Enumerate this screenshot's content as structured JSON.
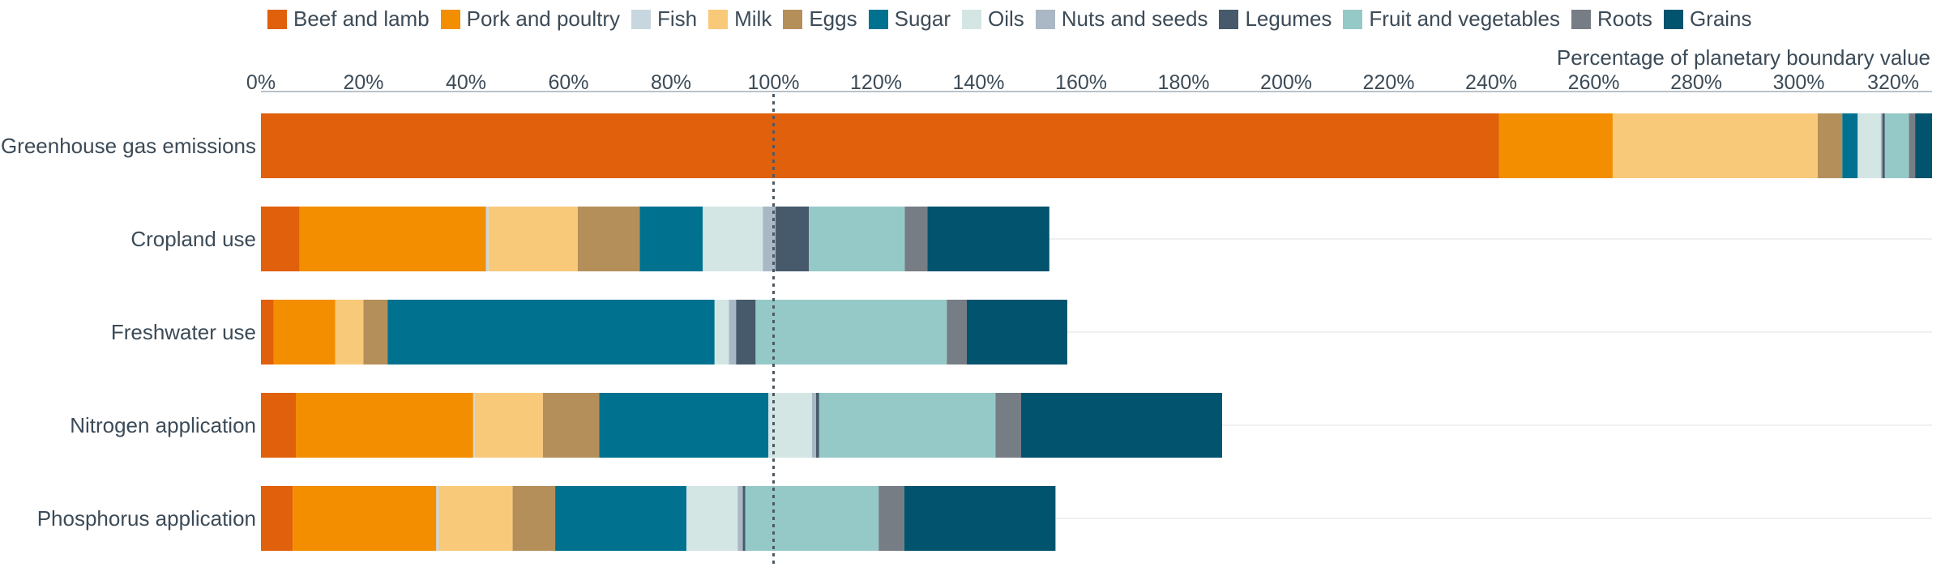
{
  "chart_data": {
    "type": "bar",
    "orientation": "horizontal",
    "stacked": true,
    "axis_title": "Percentage of planetary boundary value",
    "x_ticks": [
      "0%",
      "20%",
      "40%",
      "60%",
      "80%",
      "100%",
      "120%",
      "140%",
      "160%",
      "180%",
      "200%",
      "220%",
      "240%",
      "260%",
      "280%",
      "300%",
      "320%"
    ],
    "xlim": [
      0,
      326
    ],
    "reference_line": 100,
    "legend_position": "top",
    "categories": [
      "Greenhouse gas emissions",
      "Cropland use",
      "Freshwater use",
      "Nitrogen application",
      "Phosphorus application"
    ],
    "series": [
      {
        "name": "Beef and lamb",
        "color": "#e0600b",
        "values": [
          241.5,
          7.5,
          2.5,
          6.8,
          6.2
        ]
      },
      {
        "name": "Pork and poultry",
        "color": "#f28e00",
        "values": [
          22.2,
          36.4,
          12.0,
          34.6,
          28.0
        ]
      },
      {
        "name": "Fish",
        "color": "#c8d6e0",
        "values": [
          0.0,
          0.5,
          0.0,
          0.3,
          0.5
        ]
      },
      {
        "name": "Milk",
        "color": "#f9c97a",
        "values": [
          40.0,
          17.4,
          5.5,
          13.3,
          14.4
        ]
      },
      {
        "name": "Eggs",
        "color": "#b58f5a",
        "values": [
          4.8,
          12.1,
          4.7,
          11.0,
          8.3
        ]
      },
      {
        "name": "Sugar",
        "color": "#00728f",
        "values": [
          3.0,
          12.3,
          63.8,
          33.0,
          25.6
        ]
      },
      {
        "name": "Oils",
        "color": "#d3e6e4",
        "values": [
          4.5,
          11.7,
          2.8,
          8.5,
          10.0
        ]
      },
      {
        "name": "Nuts and seeds",
        "color": "#a9b8c4",
        "values": [
          0.3,
          2.5,
          1.4,
          0.8,
          1.0
        ]
      },
      {
        "name": "Legumes",
        "color": "#465a6b",
        "values": [
          0.5,
          6.5,
          3.8,
          0.6,
          0.5
        ]
      },
      {
        "name": "Fruit and vegetables",
        "color": "#95c9c8",
        "values": [
          4.7,
          18.7,
          37.3,
          34.4,
          26.0
        ]
      },
      {
        "name": "Roots",
        "color": "#777d85",
        "values": [
          1.2,
          4.4,
          3.9,
          5.0,
          5.0
        ]
      },
      {
        "name": "Grains",
        "color": "#02536e",
        "values": [
          3.3,
          23.8,
          19.6,
          39.2,
          29.5
        ]
      }
    ]
  }
}
